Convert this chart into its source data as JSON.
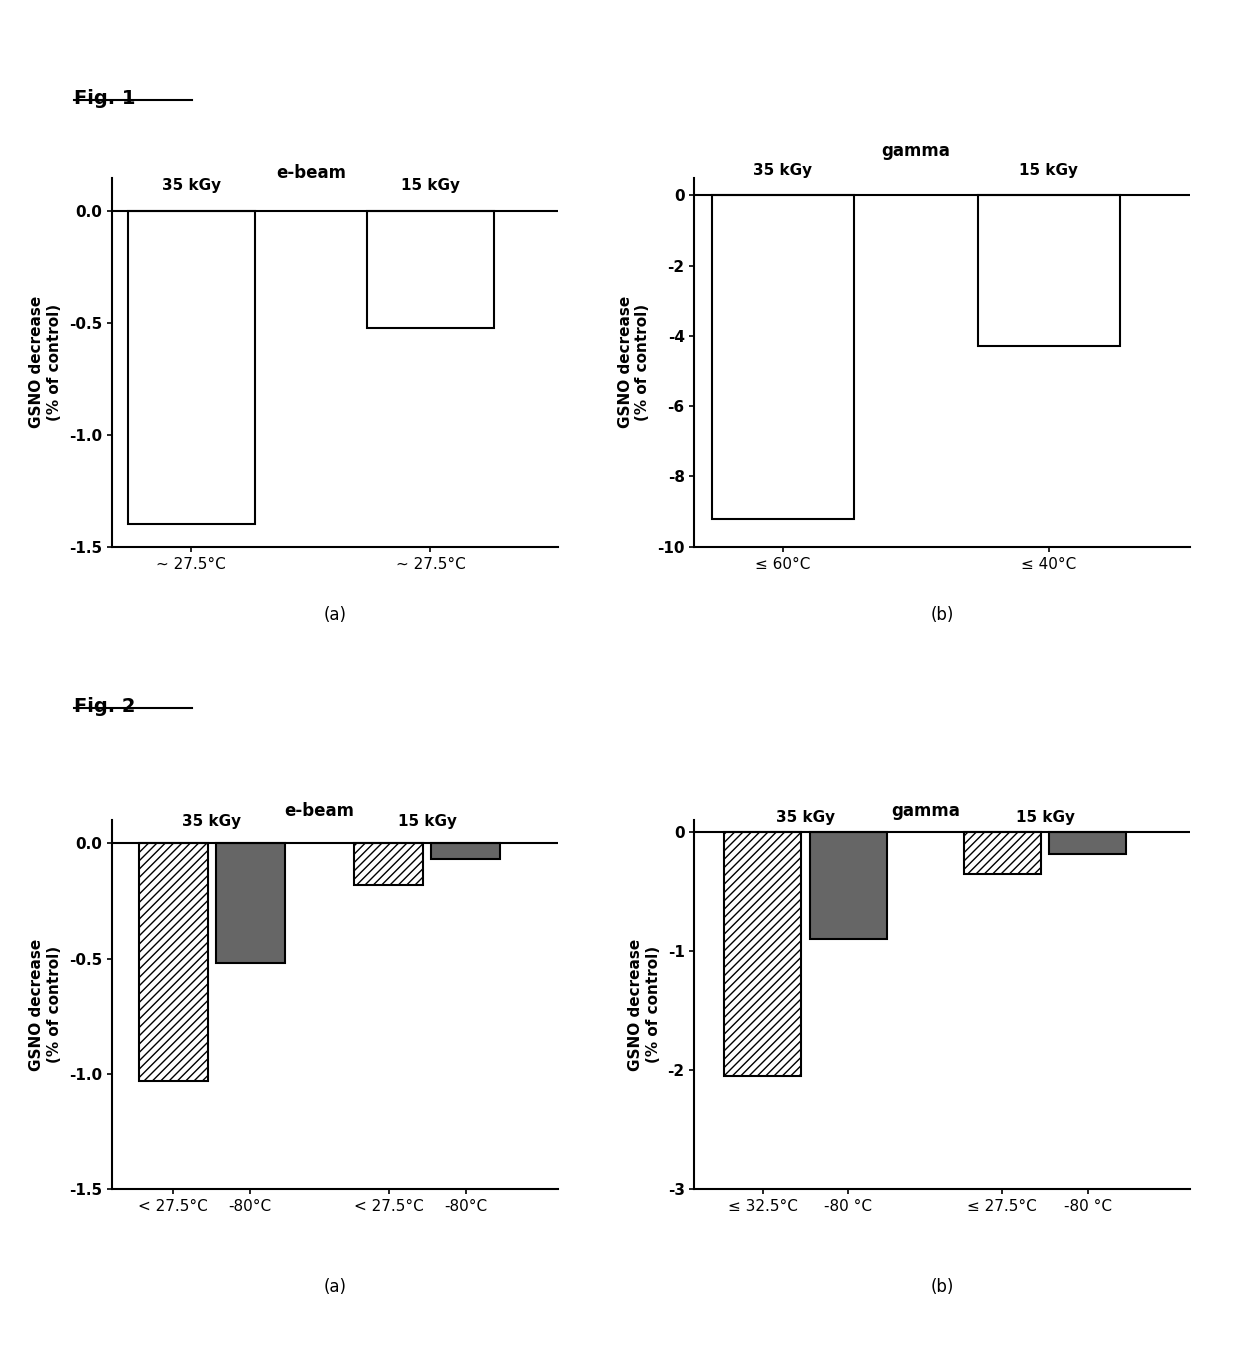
{
  "fig1a": {
    "title": "e-beam",
    "groups": [
      "35 kGy",
      "15 kGy"
    ],
    "values": [
      -1.4,
      -0.52
    ],
    "xlabels": [
      "~ 27.5°C",
      "~ 27.5°C"
    ],
    "ylabel": "GSNO decrease\n(% of control)",
    "ylim": [
      -1.5,
      0.15
    ],
    "yticks": [
      0.0,
      -0.5,
      -1.0,
      -1.5
    ],
    "yticklabels": [
      "0.0",
      "-0.5",
      "-1.0",
      "-1.5"
    ],
    "sublabel": "(a)"
  },
  "fig1b": {
    "title": "gamma",
    "groups": [
      "35 kGy",
      "15 kGy"
    ],
    "values": [
      -9.2,
      -4.3
    ],
    "xlabels": [
      "≤ 60°C",
      "≤ 40°C"
    ],
    "ylabel": "GSNO decrease\n(% of control)",
    "ylim": [
      -10,
      0.5
    ],
    "yticks": [
      0,
      -2,
      -4,
      -6,
      -8,
      -10
    ],
    "yticklabels": [
      "0",
      "-2",
      "-4",
      "-6",
      "-8",
      "-10"
    ],
    "sublabel": "(b)"
  },
  "fig2a": {
    "title": "e-beam",
    "groups": [
      "35 kGy",
      "15 kGy"
    ],
    "values_hatch": [
      -1.03,
      -0.18
    ],
    "values_dark": [
      -0.52,
      -0.07
    ],
    "xlabels_hatch": [
      "< 27.5°C",
      "< 27.5°C"
    ],
    "xlabels_dark": [
      "-80°C",
      "-80°C"
    ],
    "ylabel": "GSNO decrease\n(% of control)",
    "ylim": [
      -1.5,
      0.1
    ],
    "yticks": [
      0.0,
      -0.5,
      -1.0,
      -1.5
    ],
    "yticklabels": [
      "0.0",
      "-0.5",
      "-1.0",
      "-1.5"
    ],
    "sublabel": "(a)"
  },
  "fig2b": {
    "title": "gamma",
    "groups": [
      "35 kGy",
      "15 kGy"
    ],
    "values_hatch": [
      -2.05,
      -0.35
    ],
    "values_dark": [
      -0.9,
      -0.18
    ],
    "xlabels_hatch": [
      "≤ 32.5°C",
      "≤ 27.5°C"
    ],
    "xlabels_dark": [
      "-80 °C",
      "-80 °C"
    ],
    "ylabel": "GSNO decrease\n(% of control)",
    "ylim": [
      -3,
      0.1
    ],
    "yticks": [
      0,
      -1,
      -2,
      -3
    ],
    "yticklabels": [
      "0",
      "-1",
      "-2",
      "-3"
    ],
    "sublabel": "(b)"
  },
  "fig1_label": "Fig. 1",
  "fig2_label": "Fig. 2",
  "background_color": "#ffffff",
  "bar_color_empty": "#ffffff",
  "bar_edge_color": "#000000"
}
